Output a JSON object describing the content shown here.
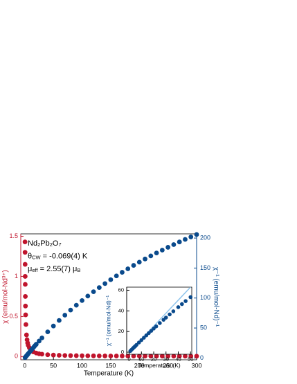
{
  "chart_data": [
    {
      "type": "scatter",
      "xlabel": "Temperature (K)",
      "ylabel": "χ (emu/mol-Nd³⁺)",
      "y2label": "χ⁻¹ (emu/mol-Nd)⁻¹",
      "annotations": [
        [
          "Nd",
          "2",
          "Pb",
          "2",
          "O",
          "7"
        ],
        [
          "θ",
          "CW",
          " = -0.069(4) K"
        ],
        [
          "μ",
          "eff",
          " = 2.55(7) μ",
          "B"
        ]
      ],
      "xlim": [
        -7,
        300
      ],
      "xticks": [
        0,
        50,
        100,
        150,
        200,
        250,
        300
      ],
      "ylim": [
        -0.04,
        1.53
      ],
      "yticks": [
        0,
        0.5,
        1,
        1.5
      ],
      "y2lim": [
        -3,
        207
      ],
      "y2ticks": [
        0,
        50,
        100,
        150,
        200
      ],
      "ycolor": "#c0142c",
      "y2color": "#0a4a8c",
      "series": [
        {
          "color": "#c0142c",
          "axis": "y",
          "x": [
            0.4,
            0.5,
            0.6,
            0.7,
            0.8,
            1,
            1.2,
            1.5,
            2,
            3,
            4,
            5,
            6,
            8,
            10,
            12,
            15,
            20,
            25,
            30,
            40,
            50,
            60,
            70,
            80,
            90,
            100,
            110,
            120,
            130,
            140,
            150,
            160,
            170,
            180,
            190,
            200,
            210,
            220,
            230,
            240,
            250,
            260,
            270,
            280,
            290,
            300
          ],
          "values": [
            1.43,
            1.3,
            1.15,
            1.0,
            0.9,
            0.75,
            0.63,
            0.52,
            0.4,
            0.27,
            0.21,
            0.17,
            0.14,
            0.11,
            0.085,
            0.072,
            0.058,
            0.044,
            0.035,
            0.03,
            0.023,
            0.019,
            0.016,
            0.014,
            0.0125,
            0.0114,
            0.0104,
            0.0097,
            0.009,
            0.0085,
            0.0081,
            0.0077,
            0.0073,
            0.007,
            0.0067,
            0.0065,
            0.0063,
            0.0061,
            0.0059,
            0.0057,
            0.0056,
            0.0054,
            0.0053,
            0.0052,
            0.0051,
            0.005,
            0.0049
          ]
        },
        {
          "color": "#0a4a8c",
          "axis": "y2",
          "x": [
            0.5,
            1,
            2,
            3,
            4,
            5,
            6,
            8,
            10,
            12,
            14,
            16,
            18,
            20,
            25,
            30,
            40,
            50,
            60,
            70,
            80,
            90,
            100,
            110,
            120,
            130,
            140,
            150,
            160,
            170,
            180,
            190,
            200,
            210,
            220,
            230,
            240,
            250,
            260,
            270,
            280,
            290,
            300
          ],
          "values": [
            0.6,
            1.2,
            2.4,
            3.6,
            4.8,
            5.9,
            7.1,
            9.4,
            11.7,
            14.0,
            16.3,
            18.5,
            20.7,
            22.9,
            28.2,
            33.5,
            43.6,
            53.3,
            62.6,
            71.4,
            79.9,
            88.0,
            95.8,
            103.3,
            110.5,
            117.4,
            124.1,
            130.6,
            136.9,
            142.9,
            148.7,
            154.4,
            159.8,
            165.1,
            170.2,
            175.1,
            179.9,
            184.6,
            189.1,
            193.5,
            197.8,
            201.9,
            205.9
          ]
        }
      ]
    },
    {
      "type": "scatter",
      "xlabel": "Temperature (K)",
      "ylabel": "χ⁻¹ (emu/mol-Nd)⁻¹",
      "xlim": [
        -2,
        51
      ],
      "xticks": [
        0,
        10,
        20,
        30,
        40,
        50
      ],
      "ylim": [
        -2,
        63
      ],
      "yticks": [
        0,
        20,
        40,
        60
      ],
      "series": [
        {
          "color": "#8ec4ec",
          "style": "line",
          "x": [
            0,
            50
          ],
          "values": [
            0,
            63
          ]
        },
        {
          "color": "#0a4a8c",
          "x": [
            1,
            2,
            3,
            4,
            5,
            6,
            8,
            10,
            12,
            14,
            16,
            18,
            20,
            22,
            25,
            28,
            30,
            33,
            36,
            40,
            43,
            46,
            50
          ],
          "values": [
            1.2,
            2.4,
            3.6,
            4.8,
            5.9,
            7.1,
            9.4,
            11.7,
            14.0,
            16.3,
            18.5,
            20.7,
            22.9,
            25.0,
            28.2,
            31.4,
            33.5,
            36.6,
            39.6,
            43.6,
            46.6,
            49.5,
            53.3
          ]
        }
      ]
    }
  ]
}
